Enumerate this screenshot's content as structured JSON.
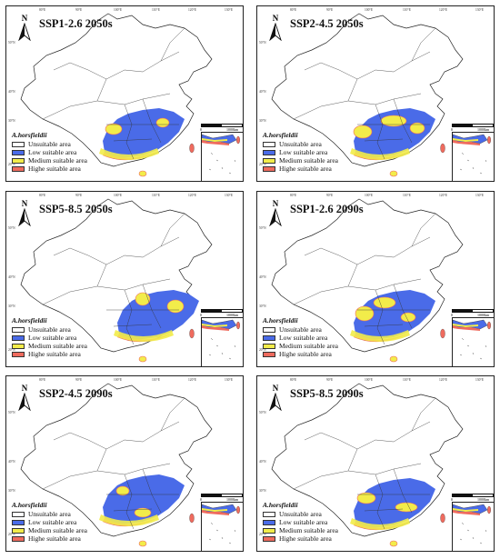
{
  "tick_labels": {
    "lon": [
      "80°E",
      "90°E",
      "100°E",
      "110°E",
      "120°E",
      "130°E"
    ],
    "lat": [
      "50°N",
      "40°N",
      "30°N",
      "20°N"
    ]
  },
  "legend": {
    "species": "A.horsfieldii",
    "items": [
      {
        "label": "Unsuitable area",
        "color": "#ffffff"
      },
      {
        "label": "Low suitable area",
        "color": "#4a6be8"
      },
      {
        "label": "Medium suitable area",
        "color": "#f2ec4a"
      },
      {
        "label": "Highe suitable area",
        "color": "#ef6b5e"
      }
    ]
  },
  "scale_bar": {
    "start": "0",
    "end": "1000km"
  },
  "north_label": "N",
  "panels": [
    {
      "title": "SSP1-2.6 2050s"
    },
    {
      "title": "SSP2-4.5 2050s"
    },
    {
      "title": "SSP5-8.5 2050s"
    },
    {
      "title": "SSP1-2.6 2090s"
    },
    {
      "title": "SSP2-4.5 2090s"
    },
    {
      "title": "SSP5-8.5 2090s"
    }
  ]
}
